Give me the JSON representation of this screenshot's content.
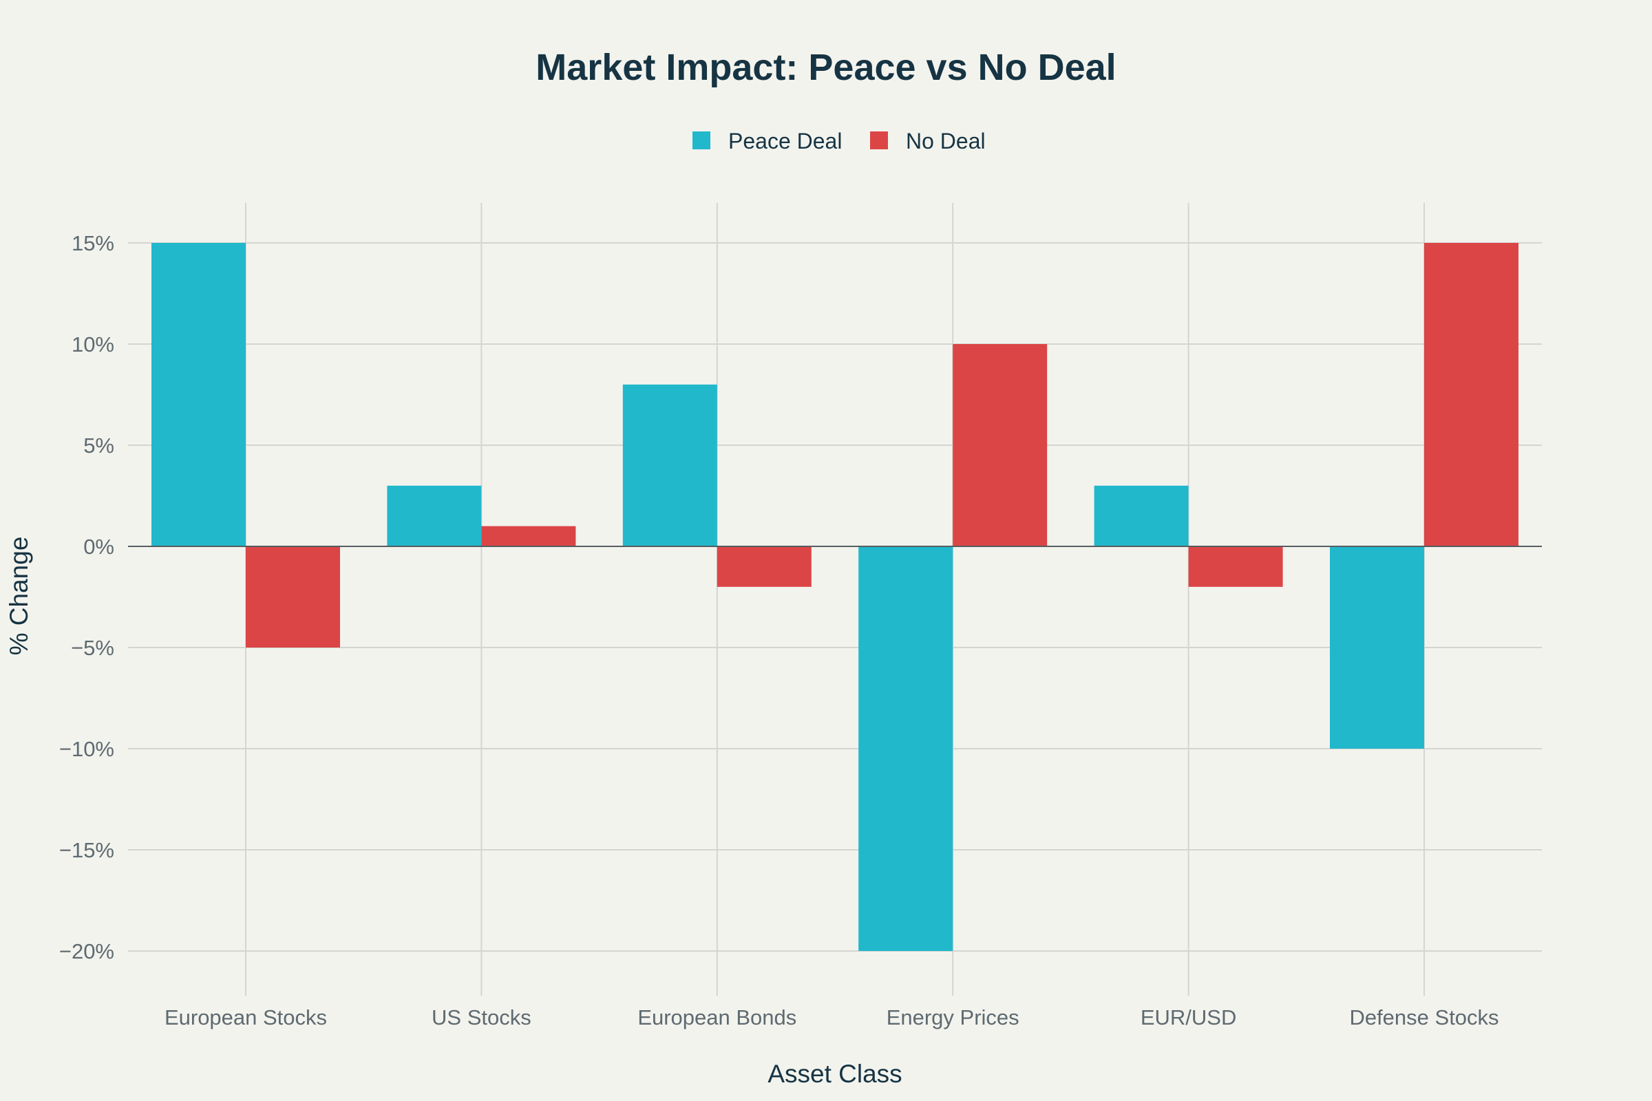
{
  "chart_data": {
    "type": "bar",
    "title": "Market Impact: Peace vs No Deal",
    "xlabel": "Asset Class",
    "ylabel": "% Change",
    "categories": [
      "European Stocks",
      "US Stocks",
      "European Bonds",
      "Energy Prices",
      "EUR/USD",
      "Defense Stocks"
    ],
    "series": [
      {
        "name": "Peace Deal",
        "color": "#21b8cc",
        "values": [
          15,
          3,
          8,
          -20,
          3,
          -10
        ]
      },
      {
        "name": "No Deal",
        "color": "#db4546",
        "values": [
          -5,
          1,
          -2,
          10,
          -2,
          15
        ]
      }
    ],
    "ylim": [
      -22,
      17
    ],
    "yticks": [
      15,
      10,
      5,
      0,
      -5,
      -10,
      -15,
      -20
    ],
    "ytick_labels": [
      "15%",
      "10%",
      "5%",
      "0%",
      "−5%",
      "−10%",
      "−15%",
      "−20%"
    ],
    "grid": true,
    "legend_position": "top-center"
  }
}
